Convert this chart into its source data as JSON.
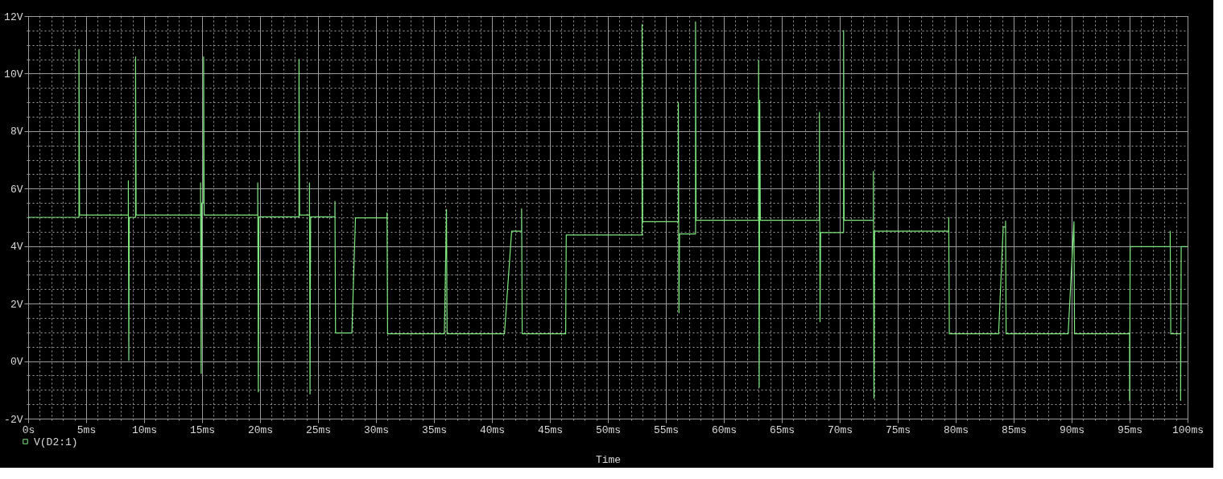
{
  "chart_data": {
    "type": "line",
    "xlabel": "Time",
    "legend": "bottom left",
    "grid": true,
    "marker": "none",
    "line_style": "solid",
    "x": [
      0,
      4.38,
      4.38,
      4.43,
      8.64,
      8.64,
      8.68,
      8.72,
      9.26,
      9.26,
      9.31,
      14.87,
      14.87,
      14.92,
      14.97,
      15.13,
      15.13,
      15.18,
      19.8,
      19.8,
      19.85,
      19.9,
      23.36,
      23.36,
      23.41,
      24.26,
      24.26,
      24.31,
      24.36,
      26.46,
      26.46,
      26.51,
      27.92,
      28.23,
      30.95,
      30.95,
      31.0,
      35.9,
      36.08,
      36.13,
      41.08,
      41.7,
      42.56,
      42.56,
      42.61,
      46.36,
      46.41,
      52.95,
      52.95,
      53.0,
      56.08,
      56.08,
      56.13,
      56.18,
      57.56,
      57.56,
      57.61,
      63.0,
      63.0,
      63.05,
      63.1,
      63.15,
      68.25,
      68.25,
      68.3,
      68.35,
      70.33,
      70.33,
      70.38,
      72.9,
      72.9,
      72.95,
      73.0,
      79.4,
      79.4,
      79.45,
      83.7,
      84.1,
      84.3,
      84.3,
      84.35,
      89.7,
      90.2,
      90.25,
      95.0,
      95.0,
      95.05,
      98.5,
      98.5,
      98.55,
      99.4,
      99.4,
      99.45,
      100
    ],
    "series": [
      {
        "name": "V(D2:1)",
        "color": "#7ee87e",
        "values": [
          5.0,
          5.0,
          10.84,
          5.08,
          5.08,
          6.27,
          0.02,
          5.0,
          5.0,
          10.58,
          5.08,
          5.08,
          6.2,
          -0.43,
          5.5,
          5.5,
          10.58,
          5.08,
          5.08,
          6.2,
          -1.07,
          5.02,
          5.02,
          10.49,
          5.08,
          5.08,
          6.2,
          -1.14,
          5.02,
          5.02,
          5.56,
          0.98,
          0.98,
          4.98,
          4.98,
          5.16,
          0.95,
          0.95,
          5.28,
          0.95,
          0.95,
          4.52,
          4.52,
          5.3,
          0.95,
          0.95,
          4.39,
          4.39,
          11.7,
          4.85,
          4.85,
          9.0,
          1.68,
          4.42,
          4.42,
          11.8,
          4.9,
          4.9,
          10.45,
          -0.91,
          9.08,
          4.9,
          4.9,
          8.65,
          1.37,
          4.47,
          4.47,
          11.5,
          4.9,
          4.9,
          6.6,
          -1.29,
          4.52,
          4.52,
          5.0,
          0.95,
          0.95,
          4.67,
          4.67,
          4.87,
          0.95,
          0.95,
          4.85,
          0.95,
          0.95,
          -1.37,
          3.98,
          3.98,
          4.52,
          0.95,
          0.95,
          -1.37,
          3.98,
          3.98
        ]
      }
    ],
    "xlim": [
      0,
      100
    ],
    "xticks": [
      {
        "value": 0,
        "label": "0s"
      },
      {
        "value": 1,
        "label": null
      },
      {
        "value": 2,
        "label": null
      },
      {
        "value": 3,
        "label": null
      },
      {
        "value": 4,
        "label": null
      },
      {
        "value": 5,
        "label": "5ms"
      },
      {
        "value": 6,
        "label": null
      },
      {
        "value": 7,
        "label": null
      },
      {
        "value": 8,
        "label": null
      },
      {
        "value": 9,
        "label": null
      },
      {
        "value": 10,
        "label": "10ms"
      },
      {
        "value": 11,
        "label": null
      },
      {
        "value": 12,
        "label": null
      },
      {
        "value": 13,
        "label": null
      },
      {
        "value": 14,
        "label": null
      },
      {
        "value": 15,
        "label": "15ms"
      },
      {
        "value": 16,
        "label": null
      },
      {
        "value": 17,
        "label": null
      },
      {
        "value": 18,
        "label": null
      },
      {
        "value": 19,
        "label": null
      },
      {
        "value": 20,
        "label": "20ms"
      },
      {
        "value": 21,
        "label": null
      },
      {
        "value": 22,
        "label": null
      },
      {
        "value": 23,
        "label": null
      },
      {
        "value": 24,
        "label": null
      },
      {
        "value": 25,
        "label": "25ms"
      },
      {
        "value": 26,
        "label": null
      },
      {
        "value": 27,
        "label": null
      },
      {
        "value": 28,
        "label": null
      },
      {
        "value": 29,
        "label": null
      },
      {
        "value": 30,
        "label": "30ms"
      },
      {
        "value": 31,
        "label": null
      },
      {
        "value": 32,
        "label": null
      },
      {
        "value": 33,
        "label": null
      },
      {
        "value": 34,
        "label": null
      },
      {
        "value": 35,
        "label": "35ms"
      },
      {
        "value": 36,
        "label": null
      },
      {
        "value": 37,
        "label": null
      },
      {
        "value": 38,
        "label": null
      },
      {
        "value": 39,
        "label": null
      },
      {
        "value": 40,
        "label": "40ms"
      },
      {
        "value": 41,
        "label": null
      },
      {
        "value": 42,
        "label": null
      },
      {
        "value": 43,
        "label": null
      },
      {
        "value": 44,
        "label": null
      },
      {
        "value": 45,
        "label": "45ms"
      },
      {
        "value": 46,
        "label": null
      },
      {
        "value": 47,
        "label": null
      },
      {
        "value": 48,
        "label": null
      },
      {
        "value": 49,
        "label": null
      },
      {
        "value": 50,
        "label": "50ms"
      },
      {
        "value": 51,
        "label": null
      },
      {
        "value": 52,
        "label": null
      },
      {
        "value": 53,
        "label": null
      },
      {
        "value": 54,
        "label": null
      },
      {
        "value": 55,
        "label": "55ms"
      },
      {
        "value": 56,
        "label": null
      },
      {
        "value": 57,
        "label": null
      },
      {
        "value": 58,
        "label": null
      },
      {
        "value": 59,
        "label": null
      },
      {
        "value": 60,
        "label": "60ms"
      },
      {
        "value": 61,
        "label": null
      },
      {
        "value": 62,
        "label": null
      },
      {
        "value": 63,
        "label": null
      },
      {
        "value": 64,
        "label": null
      },
      {
        "value": 65,
        "label": "65ms"
      },
      {
        "value": 66,
        "label": null
      },
      {
        "value": 67,
        "label": null
      },
      {
        "value": 68,
        "label": null
      },
      {
        "value": 69,
        "label": null
      },
      {
        "value": 70,
        "label": "70ms"
      },
      {
        "value": 71,
        "label": null
      },
      {
        "value": 72,
        "label": null
      },
      {
        "value": 73,
        "label": null
      },
      {
        "value": 74,
        "label": null
      },
      {
        "value": 75,
        "label": "75ms"
      },
      {
        "value": 76,
        "label": null
      },
      {
        "value": 77,
        "label": null
      },
      {
        "value": 78,
        "label": null
      },
      {
        "value": 79,
        "label": null
      },
      {
        "value": 80,
        "label": "80ms"
      },
      {
        "value": 81,
        "label": null
      },
      {
        "value": 82,
        "label": null
      },
      {
        "value": 83,
        "label": null
      },
      {
        "value": 84,
        "label": null
      },
      {
        "value": 85,
        "label": "85ms"
      },
      {
        "value": 86,
        "label": null
      },
      {
        "value": 87,
        "label": null
      },
      {
        "value": 88,
        "label": null
      },
      {
        "value": 89,
        "label": null
      },
      {
        "value": 90,
        "label": "90ms"
      },
      {
        "value": 91,
        "label": null
      },
      {
        "value": 92,
        "label": null
      },
      {
        "value": 93,
        "label": null
      },
      {
        "value": 94,
        "label": null
      },
      {
        "value": 95,
        "label": "95ms"
      },
      {
        "value": 96,
        "label": null
      },
      {
        "value": 97,
        "label": null
      },
      {
        "value": 98,
        "label": null
      },
      {
        "value": 99,
        "label": null
      },
      {
        "value": 100,
        "label": "100ms"
      }
    ],
    "ylim": [
      -2,
      12
    ],
    "yticks": [
      {
        "value": -2,
        "label": "-2V"
      },
      {
        "value": -1.5,
        "label": null
      },
      {
        "value": -1,
        "label": null
      },
      {
        "value": -0.5,
        "label": null
      },
      {
        "value": 0,
        "label": "0V"
      },
      {
        "value": 0.5,
        "label": null
      },
      {
        "value": 1,
        "label": null
      },
      {
        "value": 1.5,
        "label": null
      },
      {
        "value": 2,
        "label": "2V"
      },
      {
        "value": 2.5,
        "label": null
      },
      {
        "value": 3,
        "label": null
      },
      {
        "value": 3.5,
        "label": null
      },
      {
        "value": 4,
        "label": "4V"
      },
      {
        "value": 4.5,
        "label": null
      },
      {
        "value": 5,
        "label": null
      },
      {
        "value": 5.5,
        "label": null
      },
      {
        "value": 6,
        "label": "6V"
      },
      {
        "value": 6.5,
        "label": null
      },
      {
        "value": 7,
        "label": null
      },
      {
        "value": 7.5,
        "label": null
      },
      {
        "value": 8,
        "label": "8V"
      },
      {
        "value": 8.5,
        "label": null
      },
      {
        "value": 9,
        "label": null
      },
      {
        "value": 9.5,
        "label": null
      },
      {
        "value": 10,
        "label": "10V"
      },
      {
        "value": 10.5,
        "label": null
      },
      {
        "value": 11,
        "label": null
      },
      {
        "value": 11.5,
        "label": null
      },
      {
        "value": 12,
        "label": "12V"
      }
    ]
  }
}
